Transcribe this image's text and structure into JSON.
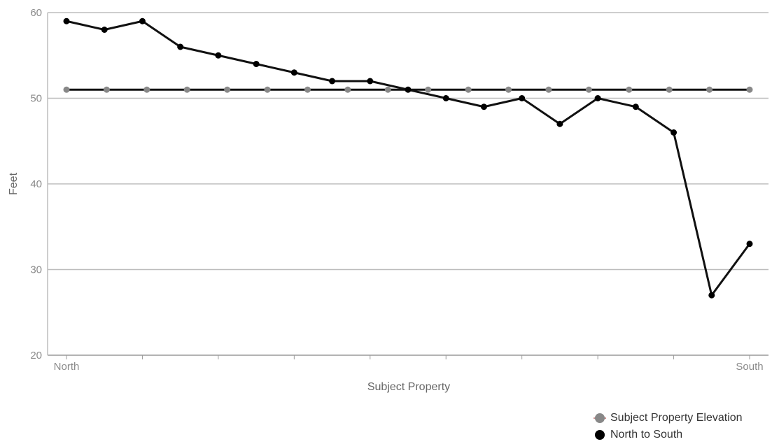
{
  "chart_data": {
    "type": "line",
    "xlabel": "Subject Property",
    "ylabel": "Feet",
    "ylim": [
      20,
      60
    ],
    "yticks": [
      20,
      30,
      40,
      50,
      60
    ],
    "x_tick_labels": [
      "North",
      "South"
    ],
    "grid": true,
    "legend_position": "bottom-right",
    "series": [
      {
        "name": "Subject Property Elevation",
        "color": "#888888",
        "line_color": "#111111",
        "values": [
          51,
          51,
          51,
          51,
          51,
          51,
          51,
          51,
          51,
          51,
          51,
          51,
          51,
          51,
          51,
          51,
          51,
          51
        ]
      },
      {
        "name": "North to South",
        "color": "#000000",
        "line_color": "#111111",
        "values": [
          59,
          58,
          59,
          56,
          55,
          54,
          53,
          52,
          52,
          51,
          50,
          49,
          50,
          47,
          50,
          49,
          46,
          27,
          33
        ]
      }
    ]
  }
}
